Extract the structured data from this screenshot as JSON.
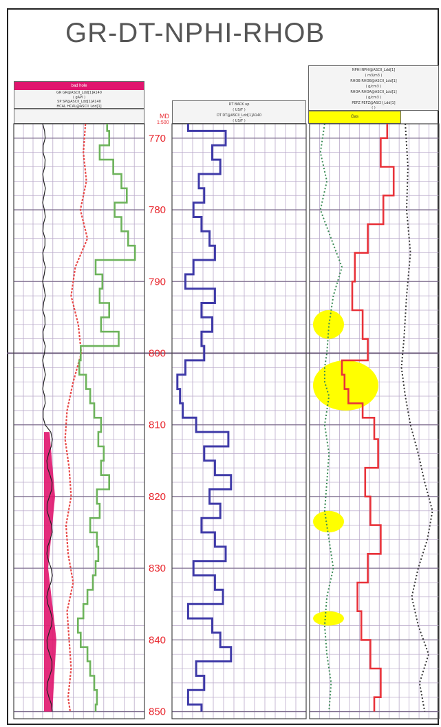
{
  "title": "GR-DT-NPHI-RHOB",
  "track1_header": {
    "band_label": "bad hole",
    "rows": [
      "GR GR@ASCII_Ldd[1]A140",
      "( gAPI )",
      "SP SP@ASCII_Ldd[1]A140",
      "( MV )",
      "HCAL HCAL@ASCII_Ldd[1]",
      "( IN )"
    ],
    "scale_left": [
      "0",
      "-80",
      "6"
    ],
    "scale_right": [
      "150",
      "20",
      "16"
    ]
  },
  "depth_header": {
    "label": "MD",
    "ratio": "1:500",
    "unit": "(M)"
  },
  "track2_header": {
    "rows": [
      "DT BACK up",
      "( US/F )",
      "DT DT@ASCII_Ldd[1]A140",
      "( US/F )"
    ],
    "scale_left": [
      "240",
      "140"
    ],
    "scale_right": [
      "40",
      "40"
    ]
  },
  "track3_header": {
    "rows": [
      "NPHI NPHI@ASCII_Ldd[1]",
      "( m3/m3 )",
      "RHOB RHOB@ASCII_Ldd[1]",
      "( g/cm3 )",
      "RHOA RHOA@ASCII_Ldd[1]",
      "( g/cm3 )",
      "PEFZ PEFZ@ASCII_Ldd[1]",
      "( )"
    ],
    "scale_left": [
      "0.45",
      "1.95",
      "-0.75",
      "0"
    ],
    "scale_right": [
      "-0.15",
      "2.95",
      "0.25",
      "10"
    ],
    "band_label": "Gas"
  },
  "colors": {
    "gr": "#6db35b",
    "sp": "#e84a4a",
    "cal": "#222222",
    "badhole": "#e0156e",
    "dt": "#3f3aa8",
    "nphi": "#3a8a55",
    "rhob": "#e8323a",
    "pef": "#333333",
    "gas": "#ffff00",
    "depth": "#e8262d",
    "grid": "#b9a9c9"
  },
  "chart_data": {
    "type": "line",
    "depth_axis": {
      "label": "MD",
      "unit": "M",
      "ylim": [
        768,
        851
      ],
      "ticks": [
        770,
        780,
        790,
        800,
        810,
        820,
        830,
        840,
        850
      ]
    },
    "series": [
      {
        "name": "GR",
        "xlim": [
          0,
          150
        ],
        "depth": [
          768,
          770,
          772,
          774,
          776,
          778,
          780,
          782,
          784,
          786,
          788,
          790,
          792,
          794,
          796,
          798,
          800,
          802,
          804,
          806,
          808,
          810,
          812,
          814,
          816,
          818,
          820,
          822,
          824,
          826,
          828,
          830,
          832,
          834,
          836,
          838,
          840,
          842,
          844,
          846,
          848,
          850
        ],
        "values": [
          95,
          98,
          84,
          104,
          116,
          124,
          106,
          116,
          126,
          136,
          78,
          88,
          84,
          98,
          86,
          112,
          56,
          54,
          64,
          70,
          76,
          86,
          82,
          90,
          86,
          98,
          80,
          84,
          70,
          80,
          82,
          78,
          74,
          66,
          60,
          52,
          56,
          66,
          70,
          76,
          80,
          78
        ]
      },
      {
        "name": "SP",
        "xlim": [
          -80,
          20
        ],
        "depth": [
          768,
          772,
          776,
          780,
          784,
          788,
          792,
          796,
          800,
          804,
          808,
          812,
          816,
          820,
          824,
          828,
          832,
          836,
          840,
          844,
          848,
          850
        ],
        "values": [
          -38,
          -40,
          -37,
          -43,
          -36,
          -48,
          -52,
          -45,
          -42,
          -50,
          -56,
          -58,
          -54,
          -52,
          -57,
          -55,
          -50,
          -56,
          -54,
          -52,
          -55,
          -53
        ]
      },
      {
        "name": "DT",
        "xlim": [
          140,
          40
        ],
        "depth": [
          768,
          770,
          772,
          774,
          776,
          778,
          780,
          782,
          784,
          786,
          788,
          790,
          792,
          794,
          796,
          798,
          800,
          802,
          804,
          806,
          808,
          810,
          812,
          814,
          816,
          818,
          820,
          822,
          824,
          826,
          828,
          830,
          832,
          834,
          836,
          838,
          840,
          842,
          844,
          846,
          848,
          850
        ],
        "values": [
          128,
          100,
          110,
          104,
          120,
          116,
          124,
          118,
          112,
          108,
          124,
          130,
          108,
          118,
          110,
          118,
          116,
          130,
          136,
          134,
          132,
          122,
          98,
          116,
          108,
          96,
          112,
          104,
          118,
          108,
          100,
          124,
          108,
          102,
          128,
          110,
          104,
          96,
          122,
          116,
          128,
          118
        ]
      },
      {
        "name": "NPHI",
        "xlim": [
          0.45,
          -0.15
        ],
        "depth": [
          768,
          772,
          776,
          780,
          784,
          788,
          792,
          796,
          800,
          802,
          804,
          806,
          808,
          810,
          814,
          818,
          822,
          826,
          830,
          834,
          838,
          842,
          846,
          850
        ],
        "values": [
          0.38,
          0.4,
          0.37,
          0.4,
          0.35,
          0.3,
          0.34,
          0.36,
          0.37,
          0.38,
          0.38,
          0.36,
          0.37,
          0.38,
          0.36,
          0.37,
          0.38,
          0.36,
          0.34,
          0.37,
          0.38,
          0.37,
          0.35,
          0.36
        ]
      },
      {
        "name": "RHOB",
        "xlim": [
          1.95,
          2.95
        ],
        "depth": [
          768,
          772,
          776,
          780,
          784,
          788,
          792,
          796,
          800,
          802,
          804,
          806,
          808,
          810,
          814,
          818,
          822,
          826,
          830,
          834,
          838,
          842,
          846,
          850
        ],
        "values": [
          2.55,
          2.5,
          2.6,
          2.52,
          2.4,
          2.3,
          2.28,
          2.36,
          2.4,
          2.2,
          2.22,
          2.25,
          2.36,
          2.45,
          2.48,
          2.38,
          2.42,
          2.5,
          2.4,
          2.32,
          2.35,
          2.42,
          2.5,
          2.45
        ]
      },
      {
        "name": "PEFZ",
        "xlim": [
          0,
          10
        ],
        "depth": [
          768,
          774,
          780,
          786,
          792,
          798,
          802,
          806,
          810,
          814,
          818,
          822,
          826,
          830,
          834,
          838,
          842,
          846,
          850
        ],
        "values": [
          7.4,
          7.6,
          7.5,
          7.8,
          7.5,
          7.3,
          7.1,
          7.4,
          7.8,
          8.4,
          8.9,
          9.5,
          9.1,
          8.4,
          7.9,
          8.4,
          9.2,
          8.5,
          8.9
        ]
      }
    ],
    "gas_zones": [
      [
        794,
        798
      ],
      [
        801,
        808
      ],
      [
        822,
        825
      ],
      [
        836,
        838
      ]
    ]
  }
}
